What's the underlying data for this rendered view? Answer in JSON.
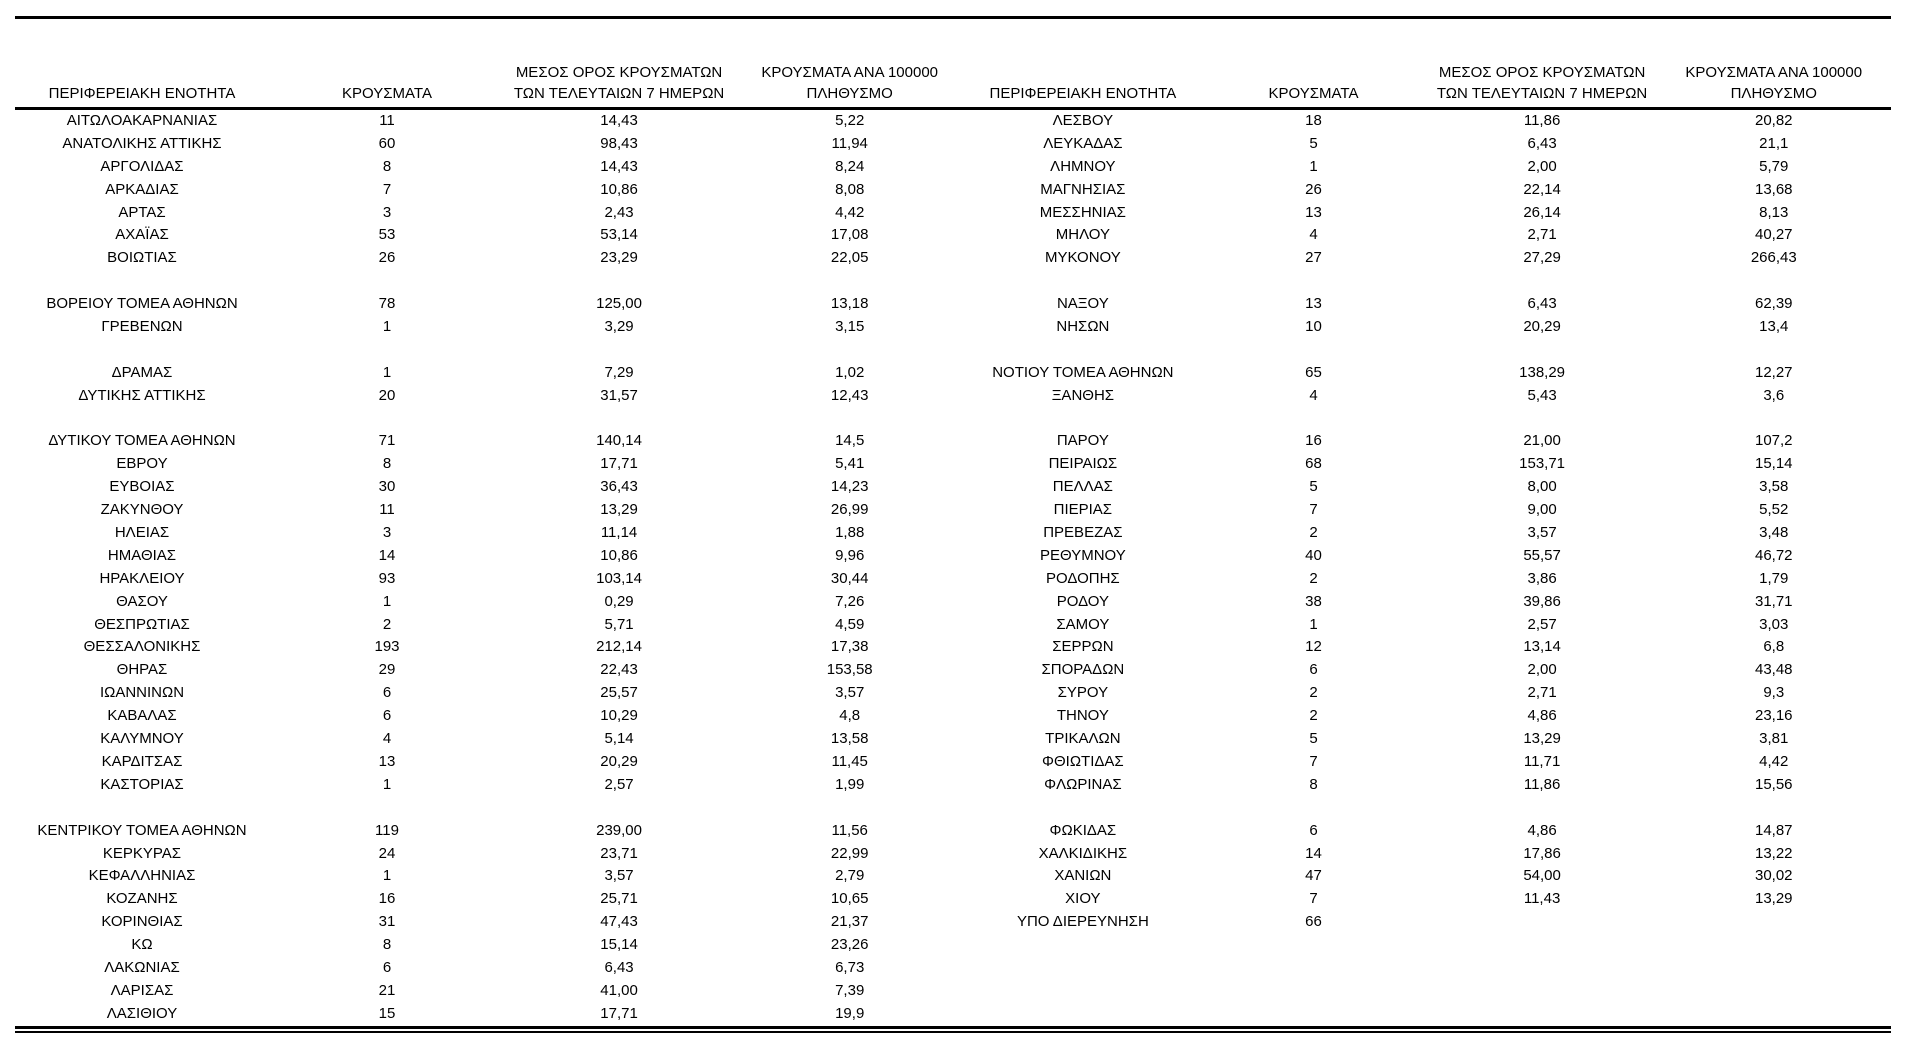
{
  "colors": {
    "text": "#000000",
    "background": "#ffffff",
    "rule": "#000000"
  },
  "table": {
    "headers": {
      "region": "ΠΕΡΙΦΕΡΕΙΑΚΗ ΕΝΟΤΗΤΑ",
      "cases": "ΚΡΟΥΣΜΑΤΑ",
      "avg7_line1": "ΜΕΣΟΣ ΟΡΟΣ ΚΡΟΥΣΜΑΤΩΝ",
      "avg7_line2": "ΤΩΝ ΤΕΛΕΥΤΑΙΩΝ 7 ΗΜΕΡΩΝ",
      "per100k_line1": "ΚΡΟΥΣΜΑΤΑ ΑΝΑ 100000",
      "per100k_line2": "ΠΛΗΘΥΣΜΟ"
    },
    "left_rows": [
      {
        "region": "ΑΙΤΩΛΟΑΚΑΡΝΑΝΙΑΣ",
        "cases": "11",
        "avg7": "14,43",
        "per100k": "5,22"
      },
      {
        "region": "ΑΝΑΤΟΛΙΚΗΣ ΑΤΤΙΚΗΣ",
        "cases": "60",
        "avg7": "98,43",
        "per100k": "11,94"
      },
      {
        "region": "ΑΡΓΟΛΙΔΑΣ",
        "cases": "8",
        "avg7": "14,43",
        "per100k": "8,24"
      },
      {
        "region": "ΑΡΚΑΔΙΑΣ",
        "cases": "7",
        "avg7": "10,86",
        "per100k": "8,08"
      },
      {
        "region": "ΑΡΤΑΣ",
        "cases": "3",
        "avg7": "2,43",
        "per100k": "4,42"
      },
      {
        "region": "ΑΧΑΪΑΣ",
        "cases": "53",
        "avg7": "53,14",
        "per100k": "17,08"
      },
      {
        "region": "ΒΟΙΩΤΙΑΣ",
        "cases": "26",
        "avg7": "23,29",
        "per100k": "22,05"
      },
      {
        "region": "",
        "cases": "",
        "avg7": "",
        "per100k": ""
      },
      {
        "region": "ΒΟΡΕΙΟΥ ΤΟΜΕΑ ΑΘΗΝΩΝ",
        "cases": "78",
        "avg7": "125,00",
        "per100k": "13,18"
      },
      {
        "region": "ΓΡΕΒΕΝΩΝ",
        "cases": "1",
        "avg7": "3,29",
        "per100k": "3,15"
      },
      {
        "region": "",
        "cases": "",
        "avg7": "",
        "per100k": ""
      },
      {
        "region": "ΔΡΑΜΑΣ",
        "cases": "1",
        "avg7": "7,29",
        "per100k": "1,02"
      },
      {
        "region": "ΔΥΤΙΚΗΣ ΑΤΤΙΚΗΣ",
        "cases": "20",
        "avg7": "31,57",
        "per100k": "12,43"
      },
      {
        "region": "",
        "cases": "",
        "avg7": "",
        "per100k": ""
      },
      {
        "region": "ΔΥΤΙΚΟΥ ΤΟΜΕΑ ΑΘΗΝΩΝ",
        "cases": "71",
        "avg7": "140,14",
        "per100k": "14,5"
      },
      {
        "region": "ΕΒΡΟΥ",
        "cases": "8",
        "avg7": "17,71",
        "per100k": "5,41"
      },
      {
        "region": "ΕΥΒΟΙΑΣ",
        "cases": "30",
        "avg7": "36,43",
        "per100k": "14,23"
      },
      {
        "region": "ΖΑΚΥΝΘΟΥ",
        "cases": "11",
        "avg7": "13,29",
        "per100k": "26,99"
      },
      {
        "region": "ΗΛΕΙΑΣ",
        "cases": "3",
        "avg7": "11,14",
        "per100k": "1,88"
      },
      {
        "region": "ΗΜΑΘΙΑΣ",
        "cases": "14",
        "avg7": "10,86",
        "per100k": "9,96"
      },
      {
        "region": "ΗΡΑΚΛΕΙΟΥ",
        "cases": "93",
        "avg7": "103,14",
        "per100k": "30,44"
      },
      {
        "region": "ΘΑΣΟΥ",
        "cases": "1",
        "avg7": "0,29",
        "per100k": "7,26"
      },
      {
        "region": "ΘΕΣΠΡΩΤΙΑΣ",
        "cases": "2",
        "avg7": "5,71",
        "per100k": "4,59"
      },
      {
        "region": "ΘΕΣΣΑΛΟΝΙΚΗΣ",
        "cases": "193",
        "avg7": "212,14",
        "per100k": "17,38"
      },
      {
        "region": "ΘΗΡΑΣ",
        "cases": "29",
        "avg7": "22,43",
        "per100k": "153,58"
      },
      {
        "region": "ΙΩΑΝΝΙΝΩΝ",
        "cases": "6",
        "avg7": "25,57",
        "per100k": "3,57"
      },
      {
        "region": "ΚΑΒΑΛΑΣ",
        "cases": "6",
        "avg7": "10,29",
        "per100k": "4,8"
      },
      {
        "region": "ΚΑΛΥΜΝΟΥ",
        "cases": "4",
        "avg7": "5,14",
        "per100k": "13,58"
      },
      {
        "region": "ΚΑΡΔΙΤΣΑΣ",
        "cases": "13",
        "avg7": "20,29",
        "per100k": "11,45"
      },
      {
        "region": "ΚΑΣΤΟΡΙΑΣ",
        "cases": "1",
        "avg7": "2,57",
        "per100k": "1,99"
      },
      {
        "region": "",
        "cases": "",
        "avg7": "",
        "per100k": ""
      },
      {
        "region": "ΚΕΝΤΡΙΚΟΥ ΤΟΜΕΑ ΑΘΗΝΩΝ",
        "cases": "119",
        "avg7": "239,00",
        "per100k": "11,56"
      },
      {
        "region": "ΚΕΡΚΥΡΑΣ",
        "cases": "24",
        "avg7": "23,71",
        "per100k": "22,99"
      },
      {
        "region": "ΚΕΦΑΛΛΗΝΙΑΣ",
        "cases": "1",
        "avg7": "3,57",
        "per100k": "2,79"
      },
      {
        "region": "ΚΟΖΑΝΗΣ",
        "cases": "16",
        "avg7": "25,71",
        "per100k": "10,65"
      },
      {
        "region": "ΚΟΡΙΝΘΙΑΣ",
        "cases": "31",
        "avg7": "47,43",
        "per100k": "21,37"
      },
      {
        "region": "ΚΩ",
        "cases": "8",
        "avg7": "15,14",
        "per100k": "23,26"
      },
      {
        "region": "ΛΑΚΩΝΙΑΣ",
        "cases": "6",
        "avg7": "6,43",
        "per100k": "6,73"
      },
      {
        "region": "ΛΑΡΙΣΑΣ",
        "cases": "21",
        "avg7": "41,00",
        "per100k": "7,39"
      },
      {
        "region": "ΛΑΣΙΘΙΟΥ",
        "cases": "15",
        "avg7": "17,71",
        "per100k": "19,9"
      }
    ],
    "right_rows": [
      {
        "region": "ΛΕΣΒΟΥ",
        "cases": "18",
        "avg7": "11,86",
        "per100k": "20,82"
      },
      {
        "region": "ΛΕΥΚΑΔΑΣ",
        "cases": "5",
        "avg7": "6,43",
        "per100k": "21,1"
      },
      {
        "region": "ΛΗΜΝΟΥ",
        "cases": "1",
        "avg7": "2,00",
        "per100k": "5,79"
      },
      {
        "region": "ΜΑΓΝΗΣΙΑΣ",
        "cases": "26",
        "avg7": "22,14",
        "per100k": "13,68"
      },
      {
        "region": "ΜΕΣΣΗΝΙΑΣ",
        "cases": "13",
        "avg7": "26,14",
        "per100k": "8,13"
      },
      {
        "region": "ΜΗΛΟΥ",
        "cases": "4",
        "avg7": "2,71",
        "per100k": "40,27"
      },
      {
        "region": "ΜΥΚΟΝΟΥ",
        "cases": "27",
        "avg7": "27,29",
        "per100k": "266,43"
      },
      {
        "region": "",
        "cases": "",
        "avg7": "",
        "per100k": ""
      },
      {
        "region": "ΝΑΞΟΥ",
        "cases": "13",
        "avg7": "6,43",
        "per100k": "62,39"
      },
      {
        "region": "ΝΗΣΩΝ",
        "cases": "10",
        "avg7": "20,29",
        "per100k": "13,4"
      },
      {
        "region": "",
        "cases": "",
        "avg7": "",
        "per100k": ""
      },
      {
        "region": "ΝΟΤΙΟΥ ΤΟΜΕΑ ΑΘΗΝΩΝ",
        "cases": "65",
        "avg7": "138,29",
        "per100k": "12,27"
      },
      {
        "region": "ΞΑΝΘΗΣ",
        "cases": "4",
        "avg7": "5,43",
        "per100k": "3,6"
      },
      {
        "region": "",
        "cases": "",
        "avg7": "",
        "per100k": ""
      },
      {
        "region": "ΠΑΡΟΥ",
        "cases": "16",
        "avg7": "21,00",
        "per100k": "107,2"
      },
      {
        "region": "ΠΕΙΡΑΙΩΣ",
        "cases": "68",
        "avg7": "153,71",
        "per100k": "15,14"
      },
      {
        "region": "ΠΕΛΛΑΣ",
        "cases": "5",
        "avg7": "8,00",
        "per100k": "3,58"
      },
      {
        "region": "ΠΙΕΡΙΑΣ",
        "cases": "7",
        "avg7": "9,00",
        "per100k": "5,52"
      },
      {
        "region": "ΠΡΕΒΕΖΑΣ",
        "cases": "2",
        "avg7": "3,57",
        "per100k": "3,48"
      },
      {
        "region": "ΡΕΘΥΜΝΟΥ",
        "cases": "40",
        "avg7": "55,57",
        "per100k": "46,72"
      },
      {
        "region": "ΡΟΔΟΠΗΣ",
        "cases": "2",
        "avg7": "3,86",
        "per100k": "1,79"
      },
      {
        "region": "ΡΟΔΟΥ",
        "cases": "38",
        "avg7": "39,86",
        "per100k": "31,71"
      },
      {
        "region": "ΣΑΜΟΥ",
        "cases": "1",
        "avg7": "2,57",
        "per100k": "3,03"
      },
      {
        "region": "ΣΕΡΡΩΝ",
        "cases": "12",
        "avg7": "13,14",
        "per100k": "6,8"
      },
      {
        "region": "ΣΠΟΡΑΔΩΝ",
        "cases": "6",
        "avg7": "2,00",
        "per100k": "43,48"
      },
      {
        "region": "ΣΥΡΟΥ",
        "cases": "2",
        "avg7": "2,71",
        "per100k": "9,3"
      },
      {
        "region": "ΤΗΝΟΥ",
        "cases": "2",
        "avg7": "4,86",
        "per100k": "23,16"
      },
      {
        "region": "ΤΡΙΚΑΛΩΝ",
        "cases": "5",
        "avg7": "13,29",
        "per100k": "3,81"
      },
      {
        "region": "ΦΘΙΩΤΙΔΑΣ",
        "cases": "7",
        "avg7": "11,71",
        "per100k": "4,42"
      },
      {
        "region": "ΦΛΩΡΙΝΑΣ",
        "cases": "8",
        "avg7": "11,86",
        "per100k": "15,56"
      },
      {
        "region": "",
        "cases": "",
        "avg7": "",
        "per100k": ""
      },
      {
        "region": "ΦΩΚΙΔΑΣ",
        "cases": "6",
        "avg7": "4,86",
        "per100k": "14,87"
      },
      {
        "region": "ΧΑΛΚΙΔΙΚΗΣ",
        "cases": "14",
        "avg7": "17,86",
        "per100k": "13,22"
      },
      {
        "region": "ΧΑΝΙΩΝ",
        "cases": "47",
        "avg7": "54,00",
        "per100k": "30,02"
      },
      {
        "region": "ΧΙΟΥ",
        "cases": "7",
        "avg7": "11,43",
        "per100k": "13,29"
      },
      {
        "region": "ΥΠΟ ΔΙΕΡΕΥΝΗΣΗ",
        "cases": "66",
        "avg7": "",
        "per100k": ""
      },
      {
        "region": "",
        "cases": "",
        "avg7": "",
        "per100k": ""
      },
      {
        "region": "",
        "cases": "",
        "avg7": "",
        "per100k": ""
      },
      {
        "region": "",
        "cases": "",
        "avg7": "",
        "per100k": ""
      },
      {
        "region": "",
        "cases": "",
        "avg7": "",
        "per100k": ""
      }
    ]
  }
}
